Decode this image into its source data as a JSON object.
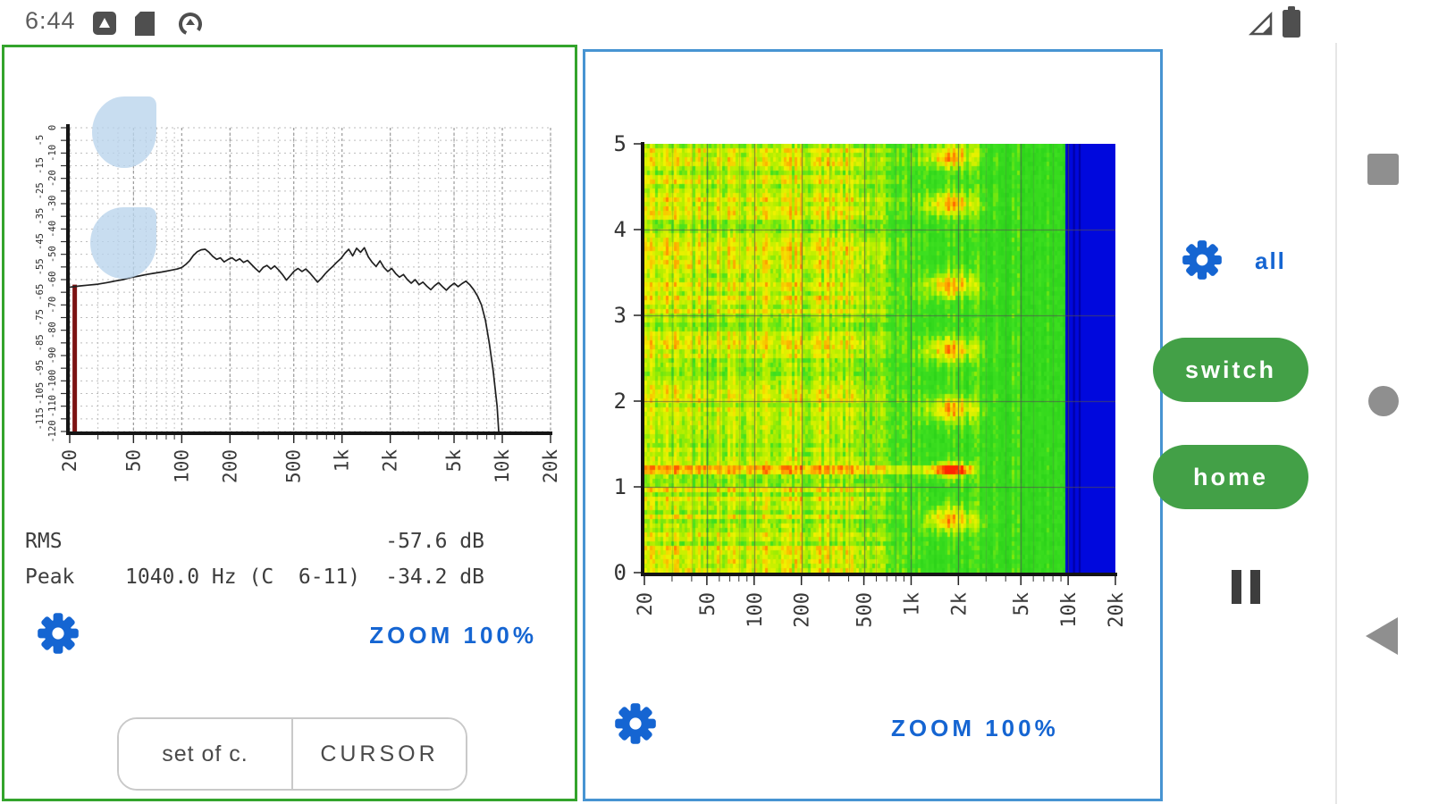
{
  "status_bar": {
    "time": "6:44"
  },
  "left_panel": {
    "readout": {
      "rms_label": "RMS",
      "rms_value": "-57.6 dB",
      "peak_label": "Peak",
      "peak_detail": "1040.0 Hz (C  6-11)",
      "peak_value": "-34.2 dB"
    },
    "zoom_label": "ZOOM 100%",
    "set_button": "set of c.",
    "cursor_button": "CURSOR"
  },
  "right_panel": {
    "zoom_label": "ZOOM 100%"
  },
  "side_controls": {
    "all_label": "all",
    "switch_label": "switch",
    "home_label": "home"
  },
  "colors": {
    "panel_green": "#33a42c",
    "panel_blue": "#4794d2",
    "accent_blue": "#1565d2",
    "button_green": "#43a047",
    "nav_gray": "#8f8f8f",
    "statusbar_gray": "#4f4f4f",
    "marker_red": "#7c1212"
  },
  "chart_data": [
    {
      "type": "line",
      "title": "FFT spectrum",
      "x_scale": "log",
      "xlim": [
        20,
        20000
      ],
      "ylim": [
        -120,
        0
      ],
      "x_unit": "Hz",
      "y_unit": "dB",
      "x_ticks": [
        {
          "f": 20,
          "label": "20"
        },
        {
          "f": 50,
          "label": "50"
        },
        {
          "f": 100,
          "label": "100"
        },
        {
          "f": 200,
          "label": "200"
        },
        {
          "f": 500,
          "label": "500"
        },
        {
          "f": 1000,
          "label": "1k"
        },
        {
          "f": 2000,
          "label": "2k"
        },
        {
          "f": 5000,
          "label": "5k"
        },
        {
          "f": 10000,
          "label": "10k"
        },
        {
          "f": 20000,
          "label": "20k"
        }
      ],
      "y_ticks": [
        "0",
        "-5",
        "-10",
        "-15",
        "-20",
        "-25",
        "-30",
        "-35",
        "-40",
        "-45",
        "-50",
        "-55",
        "-60",
        "-65",
        "-70",
        "-75",
        "-80",
        "-85",
        "-90",
        "-95",
        "-100",
        "-105",
        "-110",
        "-115",
        "-120"
      ],
      "marker": {
        "freq": 21.5,
        "db_from": -62,
        "db_to": -120
      },
      "points": [
        [
          20,
          -63
        ],
        [
          23,
          -62.5
        ],
        [
          26,
          -62.2
        ],
        [
          30,
          -61.8
        ],
        [
          34,
          -61.2
        ],
        [
          38,
          -60.6
        ],
        [
          43,
          -60
        ],
        [
          48,
          -59.2
        ],
        [
          54,
          -58.6
        ],
        [
          60,
          -58
        ],
        [
          67,
          -57.5
        ],
        [
          75,
          -57
        ],
        [
          84,
          -56.4
        ],
        [
          94,
          -55.8
        ],
        [
          100,
          -55.2
        ],
        [
          106,
          -54
        ],
        [
          112,
          -52.5
        ],
        [
          118,
          -50.5
        ],
        [
          125,
          -49
        ],
        [
          132,
          -48.2
        ],
        [
          140,
          -48
        ],
        [
          148,
          -49.2
        ],
        [
          156,
          -50.8
        ],
        [
          165,
          -52
        ],
        [
          174,
          -51.4
        ],
        [
          184,
          -53
        ],
        [
          195,
          -52
        ],
        [
          206,
          -51.4
        ],
        [
          218,
          -52.6
        ],
        [
          230,
          -51.8
        ],
        [
          243,
          -53.2
        ],
        [
          257,
          -52.4
        ],
        [
          272,
          -54
        ],
        [
          288,
          -55.6
        ],
        [
          305,
          -57
        ],
        [
          322,
          -55.2
        ],
        [
          340,
          -54.4
        ],
        [
          360,
          -55.8
        ],
        [
          380,
          -54.6
        ],
        [
          402,
          -56.2
        ],
        [
          425,
          -58
        ],
        [
          450,
          -60.2
        ],
        [
          476,
          -58.4
        ],
        [
          503,
          -56.6
        ],
        [
          532,
          -55.6
        ],
        [
          563,
          -56.8
        ],
        [
          595,
          -55.8
        ],
        [
          630,
          -57.4
        ],
        [
          666,
          -59.2
        ],
        [
          704,
          -61
        ],
        [
          745,
          -59.4
        ],
        [
          788,
          -57.6
        ],
        [
          833,
          -56
        ],
        [
          881,
          -54.6
        ],
        [
          932,
          -53
        ],
        [
          986,
          -51.6
        ],
        [
          1042,
          -49.6
        ],
        [
          1102,
          -48
        ],
        [
          1166,
          -50.6
        ],
        [
          1233,
          -47.6
        ],
        [
          1304,
          -49.2
        ],
        [
          1379,
          -47.4
        ],
        [
          1459,
          -51
        ],
        [
          1543,
          -53.2
        ],
        [
          1632,
          -54.8
        ],
        [
          1726,
          -52.6
        ],
        [
          1826,
          -55.2
        ],
        [
          1931,
          -56.8
        ],
        [
          2042,
          -55.6
        ],
        [
          2160,
          -57.6
        ],
        [
          2285,
          -59
        ],
        [
          2417,
          -58
        ],
        [
          2556,
          -60
        ],
        [
          2703,
          -61.4
        ],
        [
          2859,
          -60
        ],
        [
          3024,
          -62
        ],
        [
          3198,
          -61
        ],
        [
          3383,
          -62.6
        ],
        [
          3578,
          -64
        ],
        [
          3784,
          -62.4
        ],
        [
          4003,
          -61.2
        ],
        [
          4233,
          -62.8
        ],
        [
          4477,
          -64.2
        ],
        [
          4735,
          -62.6
        ],
        [
          5008,
          -61.4
        ],
        [
          5297,
          -62.8
        ],
        [
          5602,
          -61.6
        ],
        [
          5925,
          -60.6
        ],
        [
          6267,
          -62
        ],
        [
          6628,
          -64
        ],
        [
          7010,
          -66.5
        ],
        [
          7414,
          -70
        ],
        [
          7841,
          -76
        ],
        [
          8293,
          -85
        ],
        [
          8771,
          -96
        ],
        [
          9276,
          -110
        ],
        [
          9500,
          -120
        ]
      ]
    },
    {
      "type": "heatmap",
      "title": "spectrogram",
      "x_scale": "log",
      "xlim": [
        20,
        20000
      ],
      "ylim": [
        0,
        5
      ],
      "x_unit": "Hz",
      "y_unit": "s",
      "x_ticks": [
        {
          "f": 20,
          "label": "20"
        },
        {
          "f": 50,
          "label": "50"
        },
        {
          "f": 100,
          "label": "100"
        },
        {
          "f": 200,
          "label": "200"
        },
        {
          "f": 500,
          "label": "500"
        },
        {
          "f": 1000,
          "label": "1k"
        },
        {
          "f": 2000,
          "label": "2k"
        },
        {
          "f": 5000,
          "label": "5k"
        },
        {
          "f": 10000,
          "label": "10k"
        },
        {
          "f": 20000,
          "label": "20k"
        }
      ],
      "y_ticks": [
        "0",
        "1",
        "2",
        "3",
        "4",
        "5"
      ],
      "features": {
        "blue_cutoff_hz": 9500,
        "low_yellow_band_max_hz": 550,
        "hot_band_hz": [
          1300,
          2300
        ],
        "hot_streak_times": [
          4.85,
          4.3,
          3.35,
          2.6,
          1.9,
          0.62
        ],
        "red_spot": {
          "time": 1.2,
          "hz": 1800
        },
        "horizontal_streak_time": 1.2
      },
      "palette": {
        "stops": [
          [
            0,
            "#10c010"
          ],
          [
            0.45,
            "#3ee020"
          ],
          [
            0.58,
            "#aaee00"
          ],
          [
            0.7,
            "#f2f200"
          ],
          [
            0.83,
            "#ff9800"
          ],
          [
            1,
            "#ff2600"
          ]
        ],
        "blue": "#0008dd",
        "dark_blue": "#0000a0",
        "grid": "#6e6e6e"
      }
    }
  ]
}
